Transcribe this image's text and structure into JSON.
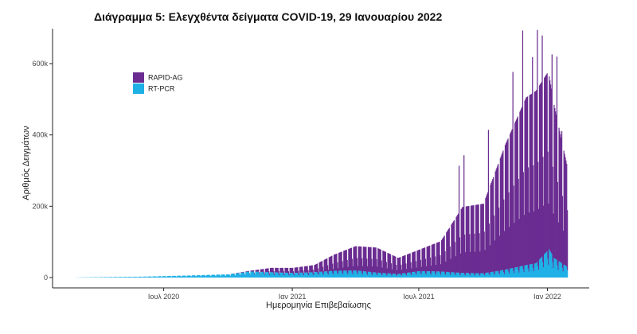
{
  "chart_data": {
    "type": "bar",
    "title": "Διάγραμμα 5: Ελεγχθέντα δείγματα COVID-19, 29 Ιανουαρίου 2022",
    "xlabel": "Ημερομηνία Επιβεβαίωσης",
    "ylabel": "Αριθμός Δειγμάτων",
    "x_range": [
      "2020-02-26",
      "2022-01-29"
    ],
    "ylim": [
      0,
      700000
    ],
    "y_ticks": [
      {
        "value": 0,
        "label": "0"
      },
      {
        "value": 200000,
        "label": "200k"
      },
      {
        "value": 400000,
        "label": "400k"
      },
      {
        "value": 600000,
        "label": "600k"
      }
    ],
    "x_ticks": [
      {
        "date": "2020-07-01",
        "label": "Ιουλ 2020"
      },
      {
        "date": "2021-01-01",
        "label": "Ιαν 2021"
      },
      {
        "date": "2021-07-01",
        "label": "Ιουλ 2021"
      },
      {
        "date": "2022-01-01",
        "label": "Ιαν 2022"
      }
    ],
    "stacked": true,
    "grid": false,
    "legend_position": "top-left",
    "series": [
      {
        "name": "RAPID-AG",
        "color": "#6a2c91",
        "points": [
          [
            "2020-02-26",
            0
          ],
          [
            "2020-06-01",
            0
          ],
          [
            "2020-10-01",
            0
          ],
          [
            "2020-11-01",
            2000
          ],
          [
            "2020-12-01",
            12000
          ],
          [
            "2021-01-01",
            14000
          ],
          [
            "2021-02-01",
            20000
          ],
          [
            "2021-03-01",
            45000
          ],
          [
            "2021-04-01",
            68000
          ],
          [
            "2021-05-01",
            70000
          ],
          [
            "2021-06-01",
            45000
          ],
          [
            "2021-07-01",
            60000
          ],
          [
            "2021-08-01",
            85000
          ],
          [
            "2021-09-01",
            185000
          ],
          [
            "2021-10-01",
            195000
          ],
          [
            "2021-11-01",
            350000
          ],
          [
            "2021-12-01",
            470000
          ],
          [
            "2022-01-01",
            500000
          ],
          [
            "2022-01-29",
            280000
          ]
        ],
        "peaks": [
          [
            "2021-08-27",
            300000
          ],
          [
            "2021-09-03",
            330000
          ],
          [
            "2021-10-08",
            400000
          ],
          [
            "2021-11-12",
            550000
          ],
          [
            "2021-11-26",
            660000
          ],
          [
            "2021-12-10",
            580000
          ],
          [
            "2021-12-17",
            650000
          ],
          [
            "2021-12-24",
            620000
          ],
          [
            "2022-01-07",
            560000
          ],
          [
            "2022-01-14",
            570000
          ],
          [
            "2022-01-21",
            370000
          ]
        ]
      },
      {
        "name": "RT-PCR",
        "color": "#1fb0e6",
        "points": [
          [
            "2020-02-26",
            300
          ],
          [
            "2020-04-01",
            1200
          ],
          [
            "2020-06-01",
            2500
          ],
          [
            "2020-08-01",
            5500
          ],
          [
            "2020-10-01",
            9000
          ],
          [
            "2020-11-01",
            17000
          ],
          [
            "2020-12-01",
            15000
          ],
          [
            "2021-01-01",
            13000
          ],
          [
            "2021-02-01",
            15000
          ],
          [
            "2021-03-01",
            19000
          ],
          [
            "2021-04-01",
            20000
          ],
          [
            "2021-05-01",
            14000
          ],
          [
            "2021-06-01",
            10000
          ],
          [
            "2021-07-01",
            18000
          ],
          [
            "2021-08-01",
            17000
          ],
          [
            "2021-09-01",
            13000
          ],
          [
            "2021-10-01",
            12000
          ],
          [
            "2021-11-01",
            22000
          ],
          [
            "2021-12-01",
            35000
          ],
          [
            "2021-12-15",
            40000
          ],
          [
            "2022-01-03",
            80000
          ],
          [
            "2022-01-10",
            55000
          ],
          [
            "2022-01-29",
            30000
          ]
        ]
      }
    ]
  }
}
